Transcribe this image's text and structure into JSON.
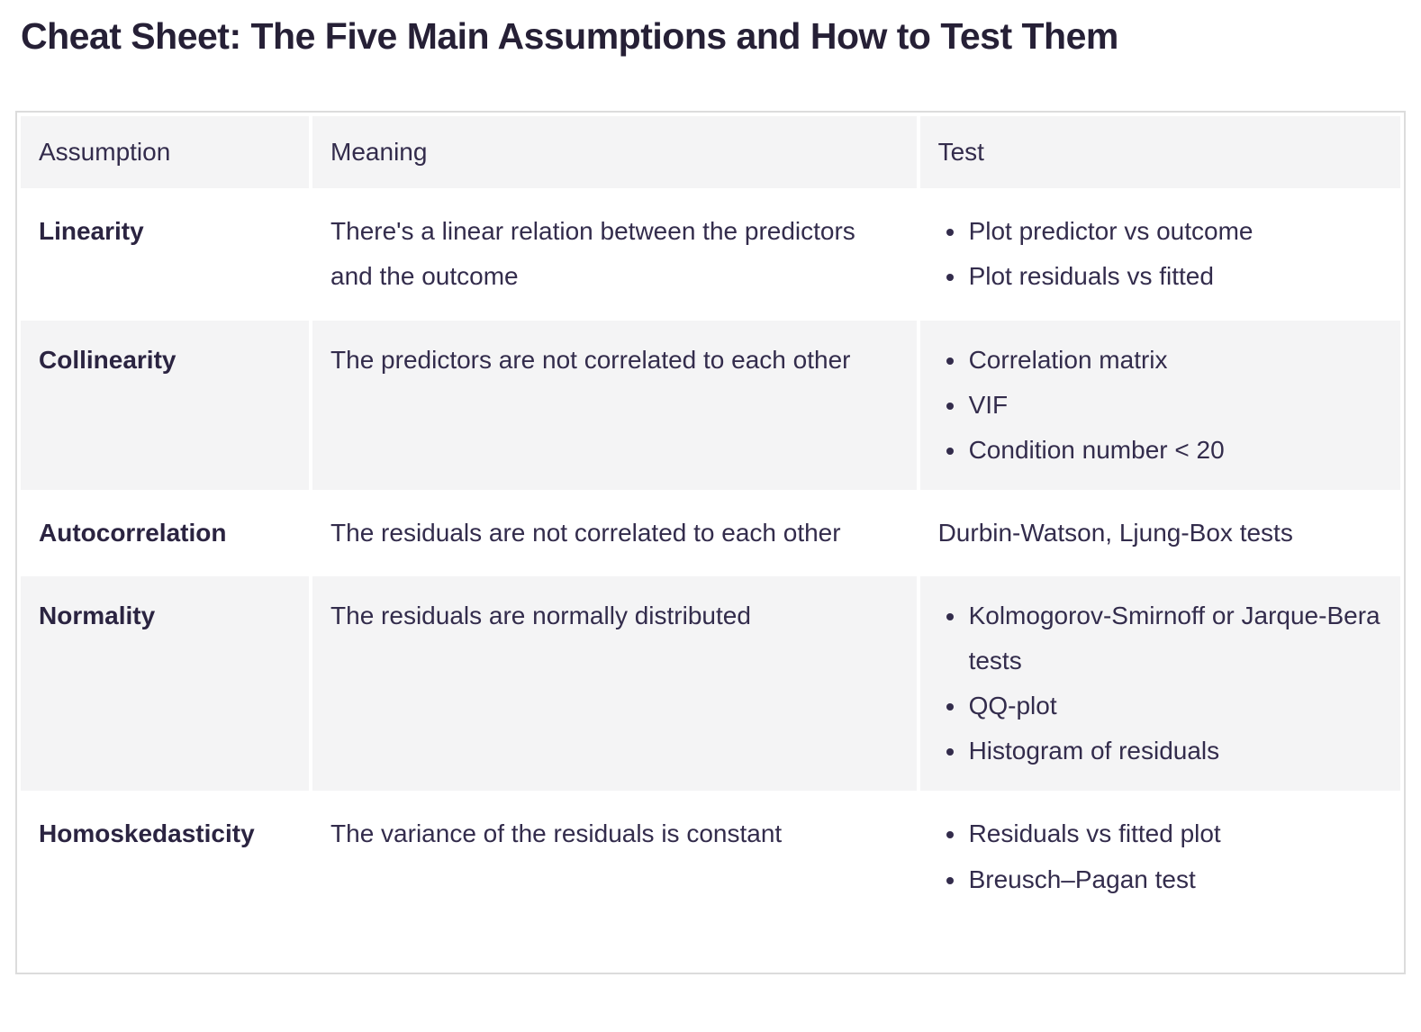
{
  "page": {
    "title": "Cheat Sheet: The Five Main Assumptions and How to Test Them"
  },
  "colors": {
    "title_text": "#262036",
    "body_text": "#332c4c",
    "striped_cell_bg": "#f4f4f5",
    "table_border": "#dcdcdc",
    "page_bg": "#ffffff"
  },
  "table": {
    "columns": [
      "Assumption",
      "Meaning",
      "Test"
    ],
    "rows": [
      {
        "assumption": "Linearity",
        "meaning": "There's a linear relation between the predictors and the outcome",
        "tests": [
          "Plot predictor vs outcome",
          "Plot residuals vs fitted"
        ]
      },
      {
        "assumption": "Collinearity",
        "meaning": "The predictors are not correlated to each other",
        "tests": [
          "Correlation matrix",
          "VIF",
          "Condition number < 20"
        ]
      },
      {
        "assumption": "Autocorrelation",
        "meaning": "The residuals are not correlated to each other",
        "tests": [
          "Durbin-Watson, Ljung-Box tests"
        ]
      },
      {
        "assumption": "Normality",
        "meaning": "The residuals are normally distributed",
        "tests": [
          "Kolmogorov-Smirnoff or Jarque-Bera tests",
          "QQ-plot",
          "Histogram of residuals"
        ]
      },
      {
        "assumption": "Homoskedasticity",
        "meaning": "The variance of the residuals is constant",
        "tests": [
          "Residuals vs fitted plot",
          "Breusch–Pagan test"
        ]
      }
    ]
  }
}
